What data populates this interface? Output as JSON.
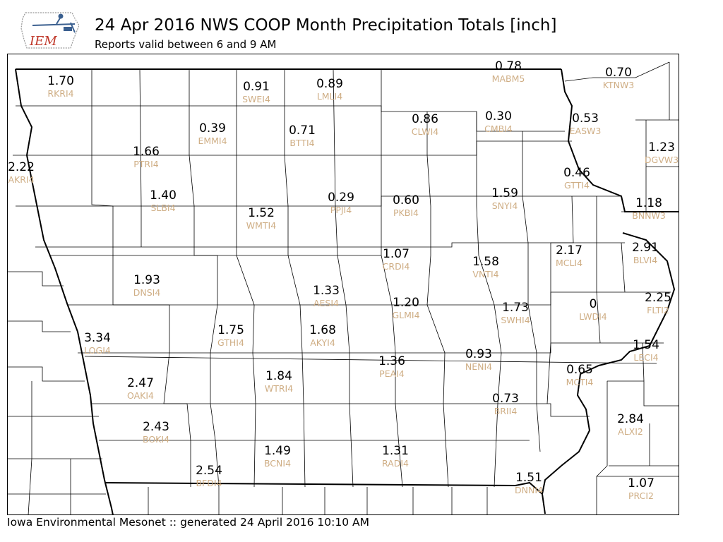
{
  "header": {
    "title": "24 Apr 2016 NWS COOP Month Precipitation Totals [inch]",
    "subtitle": "Reports valid between 6 and 9 AM",
    "logo_text": "IEM"
  },
  "footer": {
    "text": "Iowa Environmental Mesonet :: generated 24 April 2016 10:10 AM"
  },
  "colors": {
    "value_text": "#000000",
    "station_text": "#cfae85",
    "county_lines": "#000000",
    "logo_red": "#c0392b",
    "logo_blue": "#3a5f8f"
  },
  "stations": [
    {
      "id": "RKRI4",
      "value": "1.70"
    },
    {
      "id": "SWEI4",
      "value": "0.91"
    },
    {
      "id": "LMLI4",
      "value": "0.89"
    },
    {
      "id": "MABM5",
      "value": "0.78"
    },
    {
      "id": "KTNW3",
      "value": "0.70"
    },
    {
      "id": "CLWI4",
      "value": "0.86"
    },
    {
      "id": "CMBI4",
      "value": "0.30"
    },
    {
      "id": "EASW3",
      "value": "0.53"
    },
    {
      "id": "EMMI4",
      "value": "0.39"
    },
    {
      "id": "BTTI4",
      "value": "0.71"
    },
    {
      "id": "PTRI4",
      "value": "1.66"
    },
    {
      "id": "DGVW3",
      "value": "1.23"
    },
    {
      "id": "AKRI4",
      "value": "2.22"
    },
    {
      "id": "GTTI4",
      "value": "0.46"
    },
    {
      "id": "SLBI4",
      "value": "1.40"
    },
    {
      "id": "PPJI4",
      "value": "0.29"
    },
    {
      "id": "PKBI4",
      "value": "0.60"
    },
    {
      "id": "SNYI4",
      "value": "1.59"
    },
    {
      "id": "BNNW3",
      "value": "1.18"
    },
    {
      "id": "WMTI4",
      "value": "1.52"
    },
    {
      "id": "CRDI4",
      "value": "1.07"
    },
    {
      "id": "VNTI4",
      "value": "1.58"
    },
    {
      "id": "MCLI4",
      "value": "2.17"
    },
    {
      "id": "BLVI4",
      "value": "2.91"
    },
    {
      "id": "DNSI4",
      "value": "1.93"
    },
    {
      "id": "AESI4",
      "value": "1.33"
    },
    {
      "id": "GLMI4",
      "value": "1.20"
    },
    {
      "id": "SWHI4",
      "value": "1.73"
    },
    {
      "id": "LWDI4",
      "value": "0"
    },
    {
      "id": "FLTI2",
      "value": "2.25"
    },
    {
      "id": "LOGI4",
      "value": "3.34"
    },
    {
      "id": "GTHI4",
      "value": "1.75"
    },
    {
      "id": "AKYI4",
      "value": "1.68"
    },
    {
      "id": "LECI4",
      "value": "1.54"
    },
    {
      "id": "PEAI4",
      "value": "1.36"
    },
    {
      "id": "NENI4",
      "value": "0.93"
    },
    {
      "id": "MCTI4",
      "value": "0.65"
    },
    {
      "id": "OAKI4",
      "value": "2.47"
    },
    {
      "id": "WTRI4",
      "value": "1.84"
    },
    {
      "id": "BRII4",
      "value": "0.73"
    },
    {
      "id": "BOKI4",
      "value": "2.43"
    },
    {
      "id": "ALXI2",
      "value": "2.84"
    },
    {
      "id": "BCNI4",
      "value": "1.49"
    },
    {
      "id": "RADI4",
      "value": "1.31"
    },
    {
      "id": "BFDI4",
      "value": "2.54"
    },
    {
      "id": "DNNI4",
      "value": "1.51"
    },
    {
      "id": "PRCI2",
      "value": "1.07"
    }
  ]
}
